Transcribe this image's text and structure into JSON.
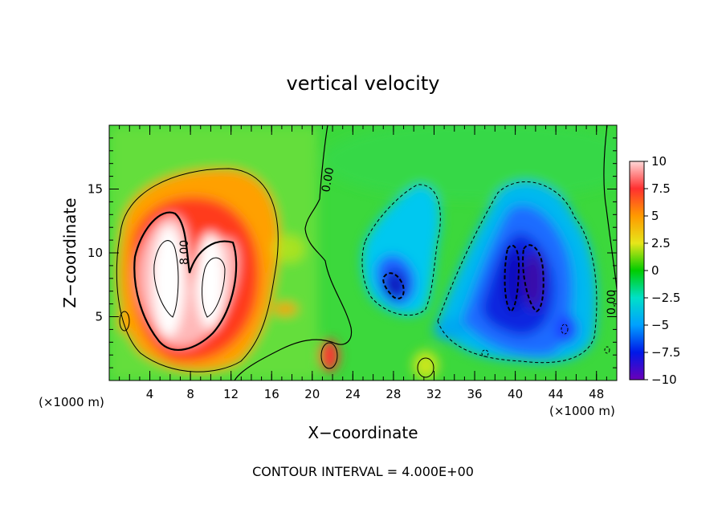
{
  "chart_data": {
    "type": "heatmap",
    "title": "vertical velocity",
    "xlabel": "X−coordinate",
    "ylabel": "Z−coordinate",
    "x_unit_left": "(×1000 m)",
    "x_unit_right": "(×1000 m)",
    "xlim": [
      0,
      50
    ],
    "ylim": [
      0,
      20
    ],
    "xticks": [
      4,
      8,
      12,
      16,
      20,
      24,
      28,
      32,
      36,
      40,
      44,
      48
    ],
    "yticks": [
      5,
      10,
      15
    ],
    "colorbar": {
      "min": -10,
      "max": 10,
      "ticks": [
        10,
        7.5,
        5,
        2.5,
        0,
        -2.5,
        -5,
        -7.5,
        -10
      ],
      "tick_labels": [
        "10",
        "7.5",
        "5",
        "2.5",
        "0",
        "−2.5",
        "−5",
        "−7.5",
        "−10"
      ],
      "colors": [
        "#ffd8d8",
        "#ff3030",
        "#ff9a00",
        "#e6e61a",
        "#00cc00",
        "#00e0c8",
        "#00a0ff",
        "#0018e8",
        "#6a00b8"
      ]
    },
    "contour_labels": [
      "0.00",
      "8.00",
      "0.00"
    ],
    "features": [
      {
        "kind": "updraft",
        "x": 7.5,
        "z": 9,
        "peak": 10
      },
      {
        "kind": "updraft",
        "x": 21.5,
        "z": 2,
        "peak": 6
      },
      {
        "kind": "downdraft",
        "x": 28,
        "z": 8,
        "peak": -8
      },
      {
        "kind": "downdraft",
        "x": 41,
        "z": 8,
        "peak": -9
      }
    ],
    "footnote": "CONTOUR INTERVAL = 4.000E+00"
  }
}
